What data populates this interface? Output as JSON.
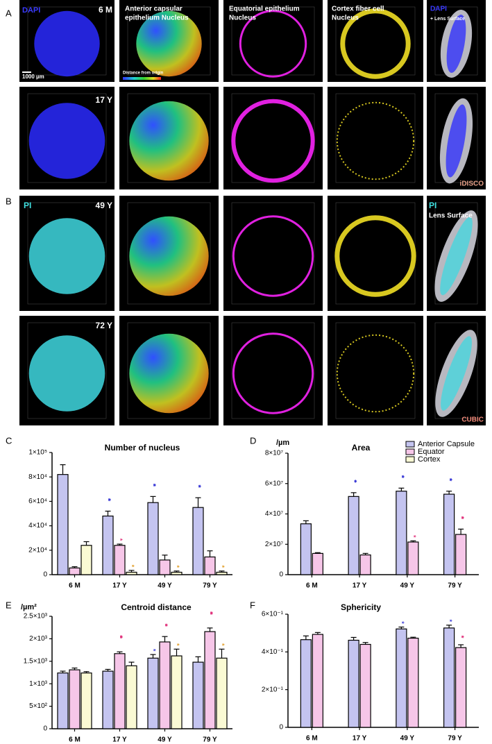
{
  "micrographs": {
    "labels": [
      "A",
      "B"
    ],
    "texts": [
      "DAPI",
      "6 M",
      "Anterior capsular",
      "epithelium Nucleus",
      "Equatorial epithelium",
      "Nucleus",
      "Cortex fiber cell",
      "Nucleus",
      "DAPI",
      "+ Lens Surface",
      "1000 µm",
      "Distance  from origin",
      "17 Y",
      "iDISCO",
      "PI",
      "49 Y",
      "PI",
      "Lens Surface",
      "72 Y",
      "CUBIC"
    ]
  },
  "chart_data": [
    {
      "type": "bar",
      "label": "C",
      "title": "Number of nucleus",
      "categories": [
        "6 M",
        "17 Y",
        "49 Y",
        "79 Y"
      ],
      "series": [
        {
          "color": "#c4c4f0",
          "values": [
            82000,
            48000,
            59000,
            55000
          ],
          "errors": [
            8000,
            4000,
            5000,
            8000
          ],
          "significance": [
            null,
            "***",
            "***",
            "***"
          ],
          "significance_color": "#3a3ad6"
        },
        {
          "color": "#f6c6e8",
          "values": [
            5500,
            24000,
            12000,
            14500
          ],
          "errors": [
            1000,
            1000,
            4000,
            5000
          ],
          "significance": [
            null,
            "*",
            null,
            null
          ],
          "significance_color": "#e0307a"
        },
        {
          "color": "#fafad4",
          "values": [
            24000,
            2000,
            2000,
            2000
          ],
          "errors": [
            3000,
            1500,
            1000,
            1000
          ],
          "significance": [
            null,
            "*",
            "*",
            "*"
          ],
          "significance_color": "#e09a20"
        }
      ],
      "ylim": [
        0,
        100000
      ],
      "yticks": [
        0,
        {
          "value": 20000,
          "label": "2×10⁴"
        },
        {
          "value": 40000,
          "label": "4×10⁴"
        },
        {
          "value": 60000,
          "label": "6×10⁴"
        },
        {
          "value": 80000,
          "label": "8×10⁴"
        },
        {
          "value": 100000,
          "label": "1×10⁵"
        }
      ]
    },
    {
      "type": "bar",
      "label": "D",
      "title": "Area",
      "ylabel": "/µm",
      "categories": [
        "6 M",
        "17 Y",
        "49 Y",
        "79 Y"
      ],
      "series": [
        {
          "name": "Anterior Capsule",
          "color": "#c4c4f0",
          "values": [
            33500000,
            51500000,
            55000000,
            53000000
          ],
          "errors": [
            2000000,
            2500000,
            2000000,
            2000000
          ],
          "significance": [
            null,
            "***",
            "***",
            "***"
          ],
          "significance_color": "#3a3ad6"
        },
        {
          "name": "Equator",
          "color": "#f6c6e8",
          "values": [
            14000000,
            13000000,
            21500000,
            26500000
          ],
          "errors": [
            500000,
            1000000,
            800000,
            3500000
          ],
          "significance": [
            null,
            null,
            "*",
            "***"
          ],
          "significance_color": "#e0307a"
        },
        {
          "name": "Cortex",
          "color": "#fafad4",
          "values": [
            null,
            null,
            null,
            null
          ]
        }
      ],
      "legend": "top-right",
      "ylim": [
        0,
        80000000
      ],
      "yticks": [
        0,
        {
          "value": 20000000,
          "label": "2×10⁷"
        },
        {
          "value": 40000000,
          "label": "4×10⁷"
        },
        {
          "value": 60000000,
          "label": "6×10⁷"
        },
        {
          "value": 80000000,
          "label": "8×10⁷"
        }
      ]
    },
    {
      "type": "bar",
      "label": "E",
      "title": "Centroid distance",
      "ylabel": "/µm²",
      "categories": [
        "6 M",
        "17 Y",
        "49 Y",
        "79 Y"
      ],
      "series": [
        {
          "color": "#c4c4f0",
          "values": [
            1240,
            1280,
            1570,
            1480
          ],
          "errors": [
            40,
            40,
            80,
            120
          ],
          "significance": [
            null,
            null,
            "*",
            null
          ],
          "significance_color": "#3a3ad6"
        },
        {
          "color": "#f6c6e8",
          "values": [
            1310,
            1670,
            1930,
            2160
          ],
          "errors": [
            40,
            40,
            120,
            80
          ],
          "significance": [
            null,
            "****",
            "***",
            "****"
          ],
          "significance_color": "#e0307a"
        },
        {
          "color": "#fafad4",
          "values": [
            1240,
            1400,
            1620,
            1570
          ],
          "errors": [
            30,
            80,
            150,
            200
          ],
          "significance": [
            null,
            null,
            "*",
            "*"
          ],
          "significance_color": "#e09a20"
        }
      ],
      "ylim": [
        0,
        2500
      ],
      "yticks": [
        0,
        {
          "value": 500,
          "label": "5×10²"
        },
        {
          "value": 1000,
          "label": "1×10³"
        },
        {
          "value": 1500,
          "label": "1.5×10³"
        },
        {
          "value": 2000,
          "label": "2×10³"
        },
        {
          "value": 2500,
          "label": "2.5×10³"
        }
      ]
    },
    {
      "type": "bar",
      "label": "F",
      "title": "Sphericity",
      "categories": [
        "6 M",
        "17 Y",
        "49 Y",
        "79 Y"
      ],
      "series": [
        {
          "color": "#c4c4f0",
          "values": [
            0.465,
            0.462,
            0.522,
            0.527
          ],
          "errors": [
            0.02,
            0.015,
            0.01,
            0.015
          ],
          "significance": [
            null,
            null,
            "*",
            "*"
          ],
          "significance_color": "#3a3ad6"
        },
        {
          "color": "#f6c6e8",
          "values": [
            0.493,
            0.44,
            0.473,
            0.423
          ],
          "errors": [
            0.01,
            0.01,
            0.005,
            0.015
          ],
          "significance": [
            null,
            null,
            null,
            "**"
          ],
          "significance_color": "#e0307a"
        }
      ],
      "ylim": [
        0,
        0.6
      ],
      "yticks": [
        0,
        {
          "value": 0.2,
          "label": "2×10⁻¹"
        },
        {
          "value": 0.4,
          "label": "4×10⁻¹"
        },
        {
          "value": 0.6,
          "label": "6×10⁻¹"
        }
      ]
    }
  ]
}
